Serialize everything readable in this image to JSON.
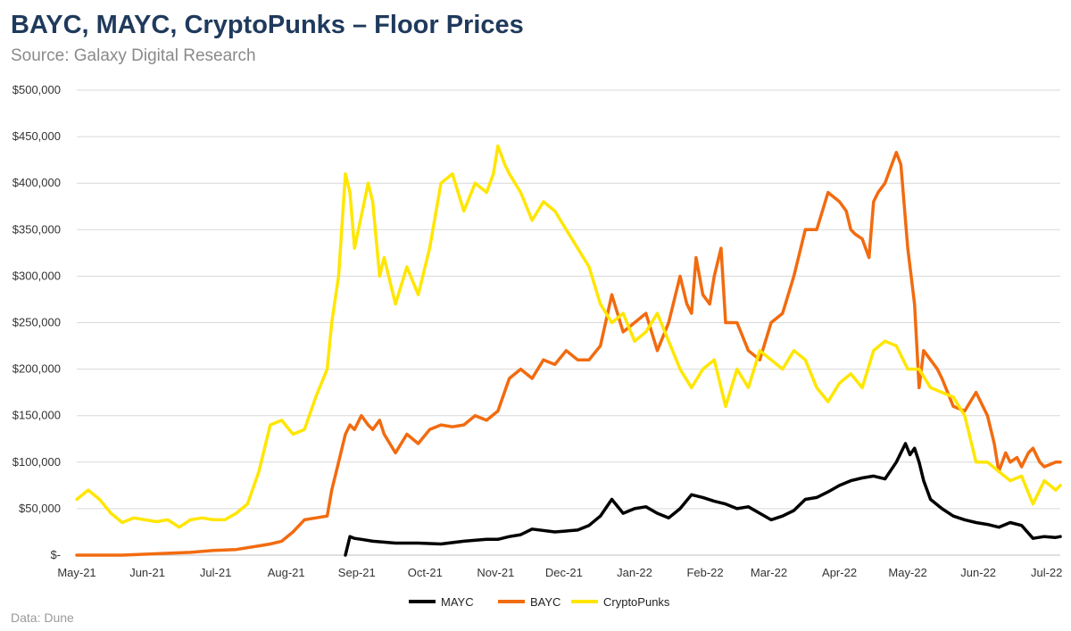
{
  "title": "BAYC, MAYC, CryptoPunks – Floor Prices",
  "subtitle": "Source: Galaxy Digital Research",
  "footnote": "Data: Dune",
  "chart_data": {
    "type": "line",
    "ylim": [
      0,
      500000
    ],
    "y_ticks": [
      0,
      50000,
      100000,
      150000,
      200000,
      250000,
      300000,
      350000,
      400000,
      450000,
      500000
    ],
    "y_tick_labels": [
      "$-",
      "$50,000",
      "$100,000",
      "$150,000",
      "$200,000",
      "$250,000",
      "$300,000",
      "$350,000",
      "$400,000",
      "$450,000",
      "$500,000"
    ],
    "xlim": [
      0,
      432
    ],
    "x_ticks": [
      0,
      31,
      61,
      92,
      123,
      153,
      184,
      214,
      245,
      276,
      304,
      335,
      365,
      396,
      426
    ],
    "x_tick_labels": [
      "May-21",
      "Jun-21",
      "Jul-21",
      "Aug-21",
      "Sep-21",
      "Oct-21",
      "Nov-21",
      "Dec-21",
      "Jan-22",
      "Feb-22",
      "Mar-22",
      "Apr-22",
      "May-22",
      "Jun-22",
      "Jul-22"
    ],
    "grid": true,
    "legend": "bottom",
    "series": [
      {
        "name": "MAYC",
        "color": "#000000",
        "x": [
          118,
          120,
          122,
          125,
          130,
          140,
          150,
          160,
          170,
          180,
          185,
          190,
          195,
          200,
          210,
          220,
          225,
          230,
          235,
          240,
          245,
          250,
          255,
          260,
          265,
          270,
          275,
          280,
          285,
          290,
          295,
          300,
          305,
          310,
          315,
          320,
          325,
          330,
          335,
          340,
          345,
          350,
          355,
          360,
          362,
          364,
          366,
          368,
          370,
          372,
          375,
          380,
          385,
          390,
          395,
          400,
          405,
          410,
          415,
          420,
          425,
          430,
          432
        ],
        "y": [
          0,
          20000,
          18000,
          17000,
          15000,
          13000,
          13000,
          12000,
          15000,
          17000,
          17000,
          20000,
          22000,
          28000,
          25000,
          27000,
          32000,
          42000,
          60000,
          45000,
          50000,
          52000,
          45000,
          40000,
          50000,
          65000,
          62000,
          58000,
          55000,
          50000,
          52000,
          45000,
          38000,
          42000,
          48000,
          60000,
          62000,
          68000,
          75000,
          80000,
          83000,
          85000,
          82000,
          100000,
          110000,
          120000,
          108000,
          115000,
          100000,
          80000,
          60000,
          50000,
          42000,
          38000,
          35000,
          33000,
          30000,
          35000,
          32000,
          18000,
          20000,
          19000,
          20000
        ]
      },
      {
        "name": "BAYC",
        "color": "#f26b0f",
        "x": [
          0,
          20,
          40,
          50,
          60,
          70,
          80,
          85,
          90,
          95,
          100,
          105,
          110,
          112,
          115,
          118,
          120,
          122,
          125,
          128,
          130,
          133,
          135,
          140,
          145,
          150,
          155,
          160,
          165,
          170,
          175,
          180,
          185,
          190,
          195,
          200,
          205,
          210,
          215,
          220,
          225,
          230,
          235,
          240,
          245,
          250,
          255,
          260,
          265,
          268,
          270,
          272,
          275,
          278,
          280,
          283,
          285,
          290,
          295,
          300,
          305,
          310,
          315,
          320,
          325,
          330,
          335,
          338,
          340,
          342,
          345,
          348,
          350,
          352,
          355,
          358,
          360,
          362,
          365,
          368,
          370,
          372,
          375,
          378,
          380,
          385,
          390,
          395,
          400,
          403,
          405,
          408,
          410,
          413,
          415,
          418,
          420,
          423,
          425,
          428,
          430,
          432
        ],
        "y": [
          0,
          0,
          2000,
          3000,
          5000,
          6000,
          10000,
          12000,
          15000,
          25000,
          38000,
          40000,
          42000,
          70000,
          100000,
          130000,
          140000,
          135000,
          150000,
          140000,
          135000,
          145000,
          130000,
          110000,
          130000,
          120000,
          135000,
          140000,
          138000,
          140000,
          150000,
          145000,
          155000,
          190000,
          200000,
          190000,
          210000,
          205000,
          220000,
          210000,
          210000,
          225000,
          280000,
          240000,
          250000,
          260000,
          220000,
          250000,
          300000,
          270000,
          260000,
          320000,
          280000,
          270000,
          300000,
          330000,
          250000,
          250000,
          220000,
          210000,
          250000,
          260000,
          300000,
          350000,
          350000,
          390000,
          380000,
          370000,
          350000,
          345000,
          340000,
          320000,
          380000,
          390000,
          400000,
          420000,
          433000,
          420000,
          330000,
          270000,
          180000,
          220000,
          210000,
          200000,
          190000,
          160000,
          155000,
          175000,
          150000,
          120000,
          90000,
          110000,
          100000,
          105000,
          95000,
          110000,
          115000,
          100000,
          95000,
          98000,
          100000,
          100000
        ]
      },
      {
        "name": "CryptoPunks",
        "color": "#ffe600",
        "x": [
          0,
          5,
          10,
          15,
          20,
          25,
          30,
          35,
          40,
          45,
          50,
          55,
          60,
          65,
          70,
          75,
          80,
          85,
          90,
          95,
          100,
          105,
          110,
          112,
          115,
          118,
          120,
          122,
          125,
          128,
          130,
          133,
          135,
          140,
          145,
          150,
          155,
          160,
          165,
          170,
          175,
          180,
          183,
          185,
          188,
          190,
          195,
          200,
          205,
          210,
          215,
          220,
          225,
          230,
          235,
          240,
          245,
          250,
          255,
          260,
          265,
          270,
          275,
          280,
          285,
          290,
          295,
          300,
          305,
          310,
          315,
          320,
          325,
          330,
          335,
          340,
          345,
          350,
          355,
          360,
          365,
          370,
          375,
          380,
          385,
          390,
          395,
          400,
          405,
          410,
          415,
          420,
          425,
          430,
          432
        ],
        "y": [
          60000,
          70000,
          60000,
          45000,
          35000,
          40000,
          38000,
          36000,
          38000,
          30000,
          38000,
          40000,
          38000,
          38000,
          45000,
          55000,
          90000,
          140000,
          145000,
          130000,
          135000,
          170000,
          200000,
          250000,
          300000,
          410000,
          390000,
          330000,
          365000,
          400000,
          380000,
          300000,
          320000,
          270000,
          310000,
          280000,
          330000,
          400000,
          410000,
          370000,
          400000,
          390000,
          410000,
          440000,
          420000,
          410000,
          390000,
          360000,
          380000,
          370000,
          350000,
          330000,
          310000,
          270000,
          250000,
          260000,
          230000,
          240000,
          260000,
          230000,
          200000,
          180000,
          200000,
          210000,
          160000,
          200000,
          180000,
          220000,
          210000,
          200000,
          220000,
          210000,
          180000,
          165000,
          185000,
          195000,
          180000,
          220000,
          230000,
          225000,
          200000,
          200000,
          180000,
          175000,
          170000,
          150000,
          100000,
          100000,
          90000,
          80000,
          85000,
          55000,
          80000,
          70000,
          75000
        ]
      }
    ]
  }
}
